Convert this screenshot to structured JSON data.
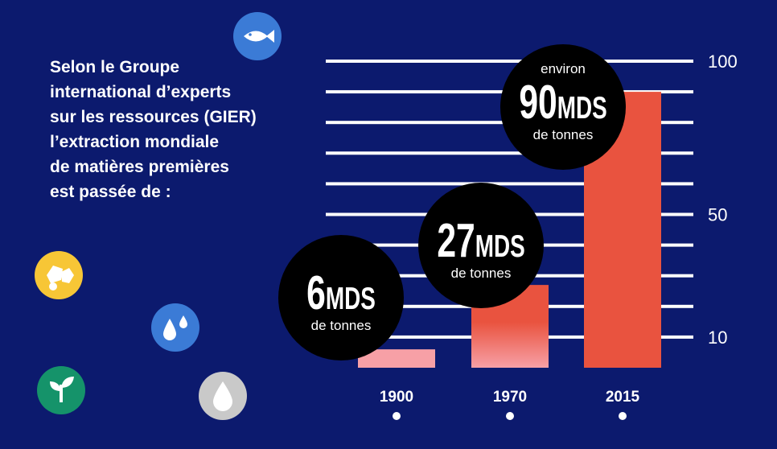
{
  "headline": {
    "lines": [
      "Selon le Groupe",
      "international d’experts",
      "sur les ressources (GIER)",
      "l’extraction mondiale",
      "de matières premières",
      "est passée de :"
    ]
  },
  "colors": {
    "background": "#0c1a6e",
    "gridline": "#ffffff",
    "bar_2015": "#e9533f",
    "bar_1970_top": "#e9533f",
    "bar_1970_bottom": "#f7a0a6",
    "bar_1900": "#f7a0a6",
    "bubble": "#000000",
    "icon_fish_bg": "#3b7bd6",
    "icon_stones_bg": "#f7c636",
    "icon_water_bg": "#3b7bd6",
    "icon_plant_bg": "#15936a",
    "icon_oil_bg": "#c9c9c9"
  },
  "icons": [
    {
      "name": "fish-icon"
    },
    {
      "name": "stones-icon"
    },
    {
      "name": "water-drops-icon"
    },
    {
      "name": "plant-sprout-icon"
    },
    {
      "name": "oil-drop-icon"
    }
  ],
  "chart_data": {
    "type": "bar",
    "categories": [
      "1900",
      "1970",
      "2015"
    ],
    "values": [
      6,
      27,
      90
    ],
    "unit": "MDS de tonnes",
    "ylim": [
      0,
      100
    ],
    "yticks": [
      10,
      50,
      100
    ],
    "grid": true,
    "yaxis_side": "right",
    "bubbles": [
      {
        "prefix": "",
        "number": "6",
        "unit": "MDS",
        "suffix": "de tonnes"
      },
      {
        "prefix": "",
        "number": "27",
        "unit": "MDS",
        "suffix": "de tonnes"
      },
      {
        "prefix": "environ",
        "number": "90",
        "unit": "MDS",
        "suffix": "de tonnes"
      }
    ]
  }
}
